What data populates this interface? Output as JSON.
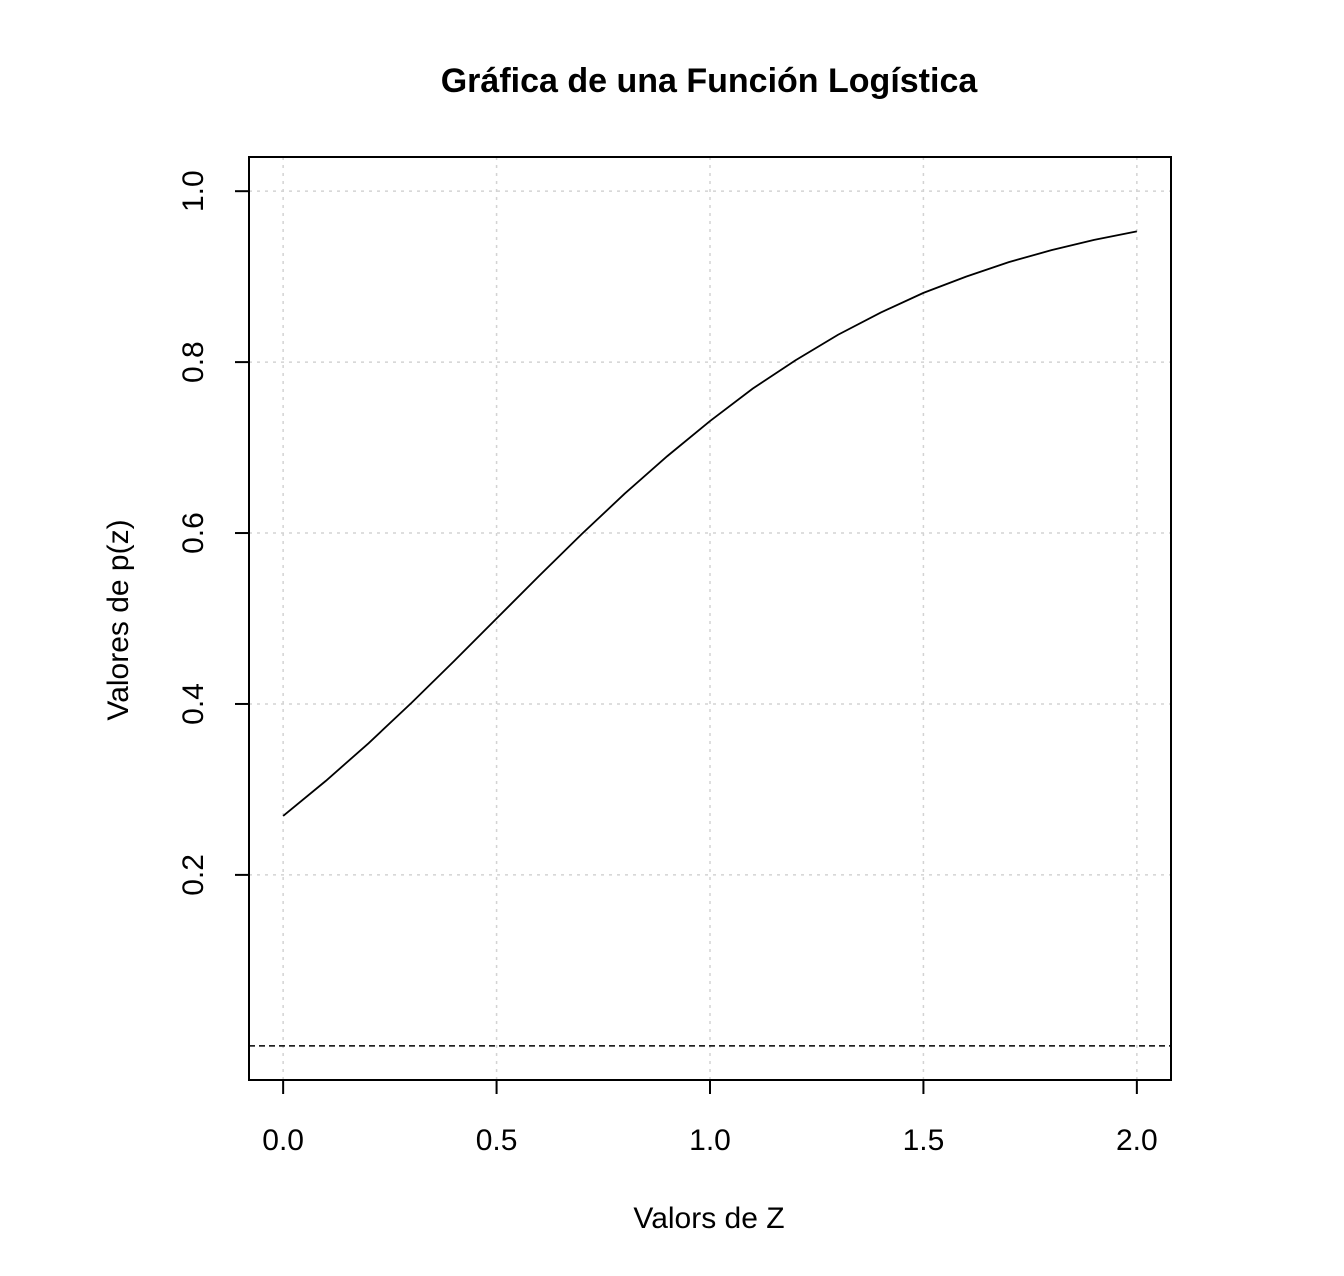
{
  "chart_data": {
    "type": "line",
    "title": "Gráfica de una Función Logística",
    "xlabel": "Valors de Z",
    "ylabel": "Valores de p(z)",
    "xlim": [
      -0.08,
      2.08
    ],
    "ylim": [
      -0.04,
      1.04
    ],
    "x_ticks": [
      0.0,
      0.5,
      1.0,
      1.5,
      2.0
    ],
    "x_tick_labels": [
      "0.0",
      "0.5",
      "1.0",
      "1.5",
      "2.0"
    ],
    "y_ticks": [
      0.2,
      0.4,
      0.6,
      0.8,
      1.0
    ],
    "y_tick_labels": [
      "0.2",
      "0.4",
      "0.6",
      "0.8",
      "1.0"
    ],
    "grid": true,
    "reference_line": {
      "y": 0,
      "style": "dashed"
    },
    "series": [
      {
        "x": [
          0.0,
          0.1,
          0.2,
          0.3,
          0.4,
          0.5,
          0.6,
          0.7,
          0.8,
          0.9,
          1.0,
          1.1,
          1.2,
          1.3,
          1.4,
          1.5,
          1.6,
          1.7,
          1.8,
          1.9,
          2.0
        ],
        "values": [
          0.269,
          0.31,
          0.354,
          0.401,
          0.45,
          0.5,
          0.55,
          0.599,
          0.646,
          0.69,
          0.731,
          0.769,
          0.802,
          0.832,
          0.858,
          0.881,
          0.9,
          0.917,
          0.931,
          0.943,
          0.953
        ]
      }
    ]
  }
}
